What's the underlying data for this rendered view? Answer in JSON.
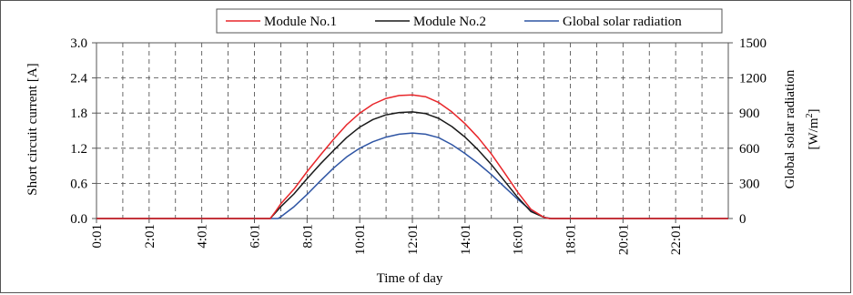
{
  "chart_data": {
    "type": "line",
    "title": "",
    "xlabel": "Time of day",
    "ylabel_left": "Short circuit current [A]",
    "ylabel_right_line1": "Global solar radiation",
    "ylabel_right_line2": "[W/m",
    "ylabel_right_sup": "2",
    "ylabel_right_close": "]",
    "x_range_hours": [
      0,
      24
    ],
    "x_tick_labels": [
      "0:01",
      "2:01",
      "4:01",
      "6:01",
      "8:01",
      "10:01",
      "12:01",
      "14:01",
      "16:01",
      "18:01",
      "20:01",
      "22:01"
    ],
    "ylim_left": [
      0,
      3.0
    ],
    "yticks_left": [
      "0.0",
      "0.6",
      "1.2",
      "1.8",
      "2.4",
      "3.0"
    ],
    "ylim_right": [
      0,
      1500
    ],
    "yticks_right": [
      "0",
      "300",
      "600",
      "900",
      "1200",
      "1500"
    ],
    "grid": true,
    "legend_position": "top-right",
    "series": [
      {
        "name": "Module No.1",
        "color": "#e8262a",
        "axis": "left",
        "x": [
          0,
          6.6,
          6.8,
          7.0,
          7.5,
          8.0,
          8.5,
          9.0,
          9.5,
          10.0,
          10.5,
          11.0,
          11.5,
          12.0,
          12.5,
          13.0,
          13.5,
          14.0,
          14.5,
          15.0,
          15.5,
          16.0,
          16.5,
          17.0,
          17.2,
          24
        ],
        "values": [
          0,
          0,
          0.12,
          0.25,
          0.5,
          0.8,
          1.08,
          1.35,
          1.6,
          1.8,
          1.95,
          2.05,
          2.1,
          2.11,
          2.08,
          1.98,
          1.82,
          1.62,
          1.38,
          1.1,
          0.78,
          0.45,
          0.16,
          0.02,
          0,
          0
        ]
      },
      {
        "name": "Module No.2",
        "color": "#1a1a1a",
        "axis": "left",
        "x": [
          0,
          6.6,
          6.8,
          7.0,
          7.5,
          8.0,
          8.5,
          9.0,
          9.5,
          10.0,
          10.5,
          11.0,
          11.5,
          12.0,
          12.5,
          13.0,
          13.5,
          14.0,
          14.5,
          15.0,
          15.5,
          16.0,
          16.5,
          17.0,
          17.2,
          24
        ],
        "values": [
          0,
          0,
          0.1,
          0.2,
          0.42,
          0.68,
          0.93,
          1.16,
          1.38,
          1.56,
          1.69,
          1.77,
          1.81,
          1.82,
          1.79,
          1.71,
          1.57,
          1.39,
          1.17,
          0.92,
          0.64,
          0.36,
          0.12,
          0.02,
          0,
          0
        ]
      },
      {
        "name": "Global solar radiation",
        "color": "#2f55a4",
        "axis": "right",
        "x": [
          0,
          6.9,
          7.0,
          7.5,
          8.0,
          8.5,
          9.0,
          9.5,
          10.0,
          10.5,
          11.0,
          11.5,
          12.0,
          12.5,
          13.0,
          13.5,
          14.0,
          14.5,
          15.0,
          15.5,
          16.0,
          16.5,
          17.0,
          17.3,
          24
        ],
        "values": [
          0,
          0,
          15,
          100,
          205,
          320,
          430,
          525,
          600,
          655,
          695,
          720,
          730,
          720,
          690,
          630,
          555,
          470,
          375,
          270,
          165,
          70,
          10,
          0,
          0
        ]
      }
    ]
  }
}
